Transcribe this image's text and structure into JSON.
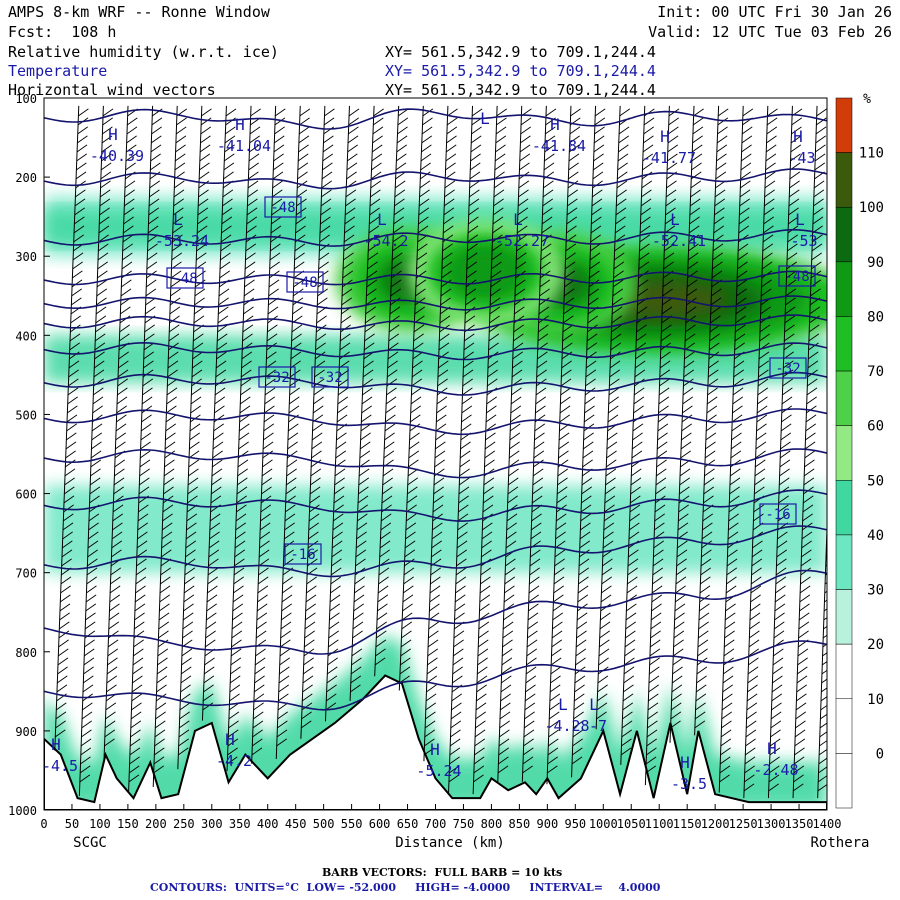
{
  "header": {
    "title": "AMPS 8-km WRF -- Ronne Window",
    "forecast": "Fcst:  108 h",
    "init": "Init: 00 UTC Fri 30 Jan 26",
    "valid": "Valid: 12 UTC Tue 03 Feb 26",
    "fields": [
      {
        "name": "Relative humidity (w.r.t. ice)",
        "xy": "XY= 561.5,342.9 to 709.1,244.4",
        "color": "#000000"
      },
      {
        "name": "Temperature",
        "xy": "XY= 561.5,342.9 to 709.1,244.4",
        "color": "#1a1aa8"
      },
      {
        "name": "Horizontal wind vectors",
        "xy": "XY= 561.5,342.9 to 709.1,244.4",
        "color": "#000000"
      }
    ]
  },
  "footer": {
    "barbs": "BARB VECTORS:  FULL BARB = 10 kts",
    "contours": "CONTOURS:  UNITS=°C  LOW= -52.000     HIGH= -4.0000     INTERVAL=    4.0000"
  },
  "chart_data": {
    "type": "cross-section",
    "xlabel": "Distance (km)",
    "x_ticks": [
      0,
      50,
      100,
      150,
      200,
      250,
      300,
      350,
      400,
      450,
      500,
      550,
      600,
      650,
      700,
      750,
      800,
      850,
      900,
      950,
      1000,
      1050,
      1100,
      1150,
      1200,
      1250,
      1300,
      1350,
      1400
    ],
    "xlim": [
      0,
      1400
    ],
    "x_end_labels": {
      "left": "SCGC",
      "right": "Rothera"
    },
    "y_ticks": [
      100,
      200,
      300,
      400,
      500,
      600,
      700,
      800,
      900,
      1000
    ],
    "ylim": [
      100,
      1000
    ],
    "y_inverted": true,
    "colorbar": {
      "unit": "%",
      "labels": [
        "110",
        "100",
        "90",
        "80",
        "70",
        "60",
        "50",
        "40",
        "30",
        "20",
        "10",
        "0"
      ],
      "levels": [
        0,
        10,
        20,
        30,
        40,
        50,
        60,
        70,
        80,
        90,
        100,
        110
      ],
      "colors": [
        "#ffffff",
        "#ffffff",
        "#ffffff",
        "#b9f2dc",
        "#6de6c2",
        "#40d8a0",
        "#93ea84",
        "#4ed048",
        "#1ebe24",
        "#109a14",
        "#0c6a10",
        "#3c5a0c",
        "#d23c08"
      ]
    },
    "temperature_contour_labels": [
      "-48",
      "-48",
      "-48",
      "-48",
      "-32",
      "-32",
      "-32",
      "-16",
      "-16"
    ],
    "highs_lows": [
      {
        "type": "H",
        "value": "-40.39"
      },
      {
        "type": "H",
        "value": "-41.04"
      },
      {
        "type": "L",
        "value": ""
      },
      {
        "type": "H",
        "value": "-41.84"
      },
      {
        "type": "H",
        "value": "-41.77"
      },
      {
        "type": "H",
        "value": "-43"
      },
      {
        "type": "L",
        "value": "-53.24"
      },
      {
        "type": "L",
        "value": "-54.2"
      },
      {
        "type": "L",
        "value": "-52.27"
      },
      {
        "type": "L",
        "value": "-52.41"
      },
      {
        "type": "L",
        "value": "-53"
      },
      {
        "type": "H",
        "value": "-4.5"
      },
      {
        "type": "H",
        "value": "-4.2"
      },
      {
        "type": "H",
        "value": "-5.24"
      },
      {
        "type": "L",
        "value": "-4.28"
      },
      {
        "type": "L",
        "value": "-7"
      },
      {
        "type": "H",
        "value": "-3.5"
      },
      {
        "type": "H",
        "value": "-2.48"
      }
    ],
    "rh_bands": [
      {
        "p_top": 225,
        "p_bottom": 300,
        "rh": 30
      },
      {
        "p_top": 240,
        "p_bottom": 285,
        "rh": 45
      },
      {
        "p_top": 400,
        "p_bottom": 460,
        "rh": 45
      },
      {
        "p_top": 590,
        "p_bottom": 700,
        "rh": 30
      }
    ],
    "moist_cores": [
      {
        "x": 1100,
        "p": 355,
        "rh": 100
      },
      {
        "x": 920,
        "p": 335,
        "rh": 90
      },
      {
        "x": 660,
        "p": 330,
        "rh": 90
      },
      {
        "x": 790,
        "p": 320,
        "rh": 85
      }
    ],
    "terrain_pressure": [
      [
        0,
        910
      ],
      [
        30,
        930
      ],
      [
        60,
        985
      ],
      [
        90,
        990
      ],
      [
        110,
        930
      ],
      [
        130,
        960
      ],
      [
        160,
        985
      ],
      [
        190,
        940
      ],
      [
        210,
        985
      ],
      [
        240,
        980
      ],
      [
        270,
        900
      ],
      [
        300,
        890
      ],
      [
        330,
        965
      ],
      [
        360,
        930
      ],
      [
        400,
        960
      ],
      [
        440,
        930
      ],
      [
        480,
        910
      ],
      [
        520,
        890
      ],
      [
        570,
        860
      ],
      [
        610,
        830
      ],
      [
        640,
        840
      ],
      [
        670,
        910
      ],
      [
        700,
        960
      ],
      [
        730,
        985
      ],
      [
        780,
        985
      ],
      [
        800,
        960
      ],
      [
        830,
        975
      ],
      [
        860,
        965
      ],
      [
        880,
        980
      ],
      [
        900,
        960
      ],
      [
        920,
        985
      ],
      [
        960,
        960
      ],
      [
        1000,
        900
      ],
      [
        1030,
        980
      ],
      [
        1060,
        900
      ],
      [
        1090,
        985
      ],
      [
        1120,
        890
      ],
      [
        1150,
        980
      ],
      [
        1170,
        900
      ],
      [
        1200,
        980
      ],
      [
        1260,
        990
      ],
      [
        1400,
        990
      ]
    ],
    "isotherms_pressure": [
      [
        125,
        120,
        135,
        118,
        130,
        122,
        128
      ],
      [
        205,
        200,
        210,
        198,
        205,
        200,
        195
      ],
      [
        280,
        278,
        282,
        276,
        279,
        275,
        272
      ],
      [
        330,
        328,
        330,
        329,
        328,
        326,
        325
      ],
      [
        360,
        358,
        360,
        362,
        360,
        358,
        356
      ],
      [
        385,
        382,
        386,
        388,
        385,
        382,
        380
      ],
      [
        418,
        415,
        420,
        425,
        422,
        420,
        415
      ],
      [
        460,
        455,
        458,
        470,
        465,
        460,
        452
      ],
      [
        505,
        500,
        505,
        520,
        512,
        505,
        498
      ],
      [
        555,
        550,
        556,
        575,
        565,
        560,
        548
      ],
      [
        615,
        610,
        615,
        630,
        620,
        612,
        600
      ],
      [
        690,
        685,
        700,
        690,
        670,
        660,
        645
      ],
      [
        770,
        790,
        800,
        760,
        740,
        730,
        700
      ],
      [
        850,
        860,
        870,
        840,
        820,
        810,
        790
      ]
    ]
  }
}
